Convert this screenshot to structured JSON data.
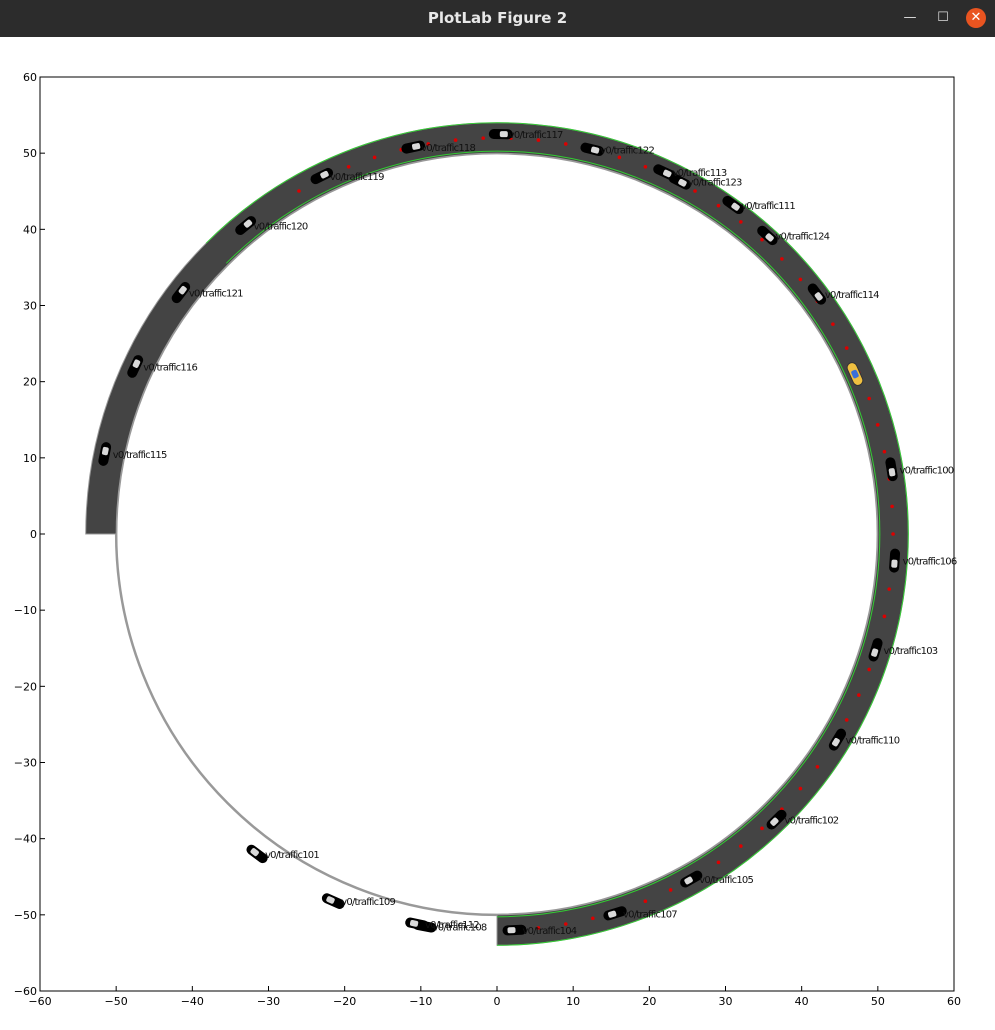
{
  "window": {
    "title": "PlotLab Figure 2",
    "minimize_glyph": "—",
    "maximize_glyph": "☐",
    "close_glyph": "✕"
  },
  "colors": {
    "titlebar": "#2c2c2c",
    "road": "#444444",
    "road_edge": "#999999",
    "lane_edge": "#33cc33",
    "waypoint": "#dd0000",
    "vehicle": "#000000",
    "ego": "#f0c040"
  },
  "chart_data": {
    "type": "scatter",
    "title": "",
    "xlabel": "",
    "ylabel": "",
    "xlim": [
      -60,
      60
    ],
    "ylim": [
      -60,
      60
    ],
    "xticks": [
      "−60",
      "−50",
      "−40",
      "−30",
      "−20",
      "−10",
      "0",
      "10",
      "20",
      "30",
      "40",
      "50",
      "60"
    ],
    "yticks": [
      "60",
      "50",
      "40",
      "30",
      "20",
      "10",
      "0",
      "−10",
      "−20",
      "−30",
      "−40",
      "−50",
      "−60"
    ],
    "grid": false,
    "road": {
      "center": [
        0,
        0
      ],
      "inner_radius": 50,
      "outer_radius": 54,
      "paved_from_deg": -90,
      "paved_to_deg": 180
    },
    "vehicles": [
      {
        "label": "v0/traffic100",
        "x": 51.8,
        "y": 8.5
      },
      {
        "label": "v0/traffic106",
        "x": 52.2,
        "y": -3.5
      },
      {
        "label": "v0/traffic103",
        "x": 49.7,
        "y": -15.2
      },
      {
        "label": "v0/traffic110",
        "x": 44.7,
        "y": -27.0
      },
      {
        "label": "v0/traffic102",
        "x": 36.7,
        "y": -37.5
      },
      {
        "label": "v0/traffic105",
        "x": 25.5,
        "y": -45.3
      },
      {
        "label": "v0/traffic107",
        "x": 15.5,
        "y": -49.8
      },
      {
        "label": "v0/traffic104",
        "x": 2.3,
        "y": -52.0
      },
      {
        "label": "v0/traffic114",
        "x": 42.0,
        "y": 31.5
      },
      {
        "label": "v0/traffic124",
        "x": 35.5,
        "y": 39.2
      },
      {
        "label": "v0/traffic111",
        "x": 31.0,
        "y": 43.2
      },
      {
        "label": "v0/traffic123",
        "x": 24.0,
        "y": 46.3
      },
      {
        "label": "v0/traffic113",
        "x": 22.0,
        "y": 47.5
      },
      {
        "label": "v0/traffic122",
        "x": 12.5,
        "y": 50.5
      },
      {
        "label": "v0/traffic117",
        "x": 0.5,
        "y": 52.5
      },
      {
        "label": "v0/traffic118",
        "x": -11.0,
        "y": 50.8
      },
      {
        "label": "v0/traffic119",
        "x": -23.0,
        "y": 47.0
      },
      {
        "label": "v0/traffic120",
        "x": -33.0,
        "y": 40.5
      },
      {
        "label": "v0/traffic121",
        "x": -41.5,
        "y": 31.7
      },
      {
        "label": "v0/traffic116",
        "x": -47.5,
        "y": 22.0
      },
      {
        "label": "v0/traffic115",
        "x": -51.5,
        "y": 10.5
      },
      {
        "label": "v0/traffic101",
        "x": -31.5,
        "y": -42.0
      },
      {
        "label": "v0/traffic109",
        "x": -21.5,
        "y": -48.2
      },
      {
        "label": "v0/traffic108",
        "x": -9.5,
        "y": -51.5
      },
      {
        "label": "v0/traffic112",
        "x": -10.5,
        "y": -51.2
      }
    ],
    "ego": {
      "x": 47.0,
      "y": 21.0
    }
  }
}
